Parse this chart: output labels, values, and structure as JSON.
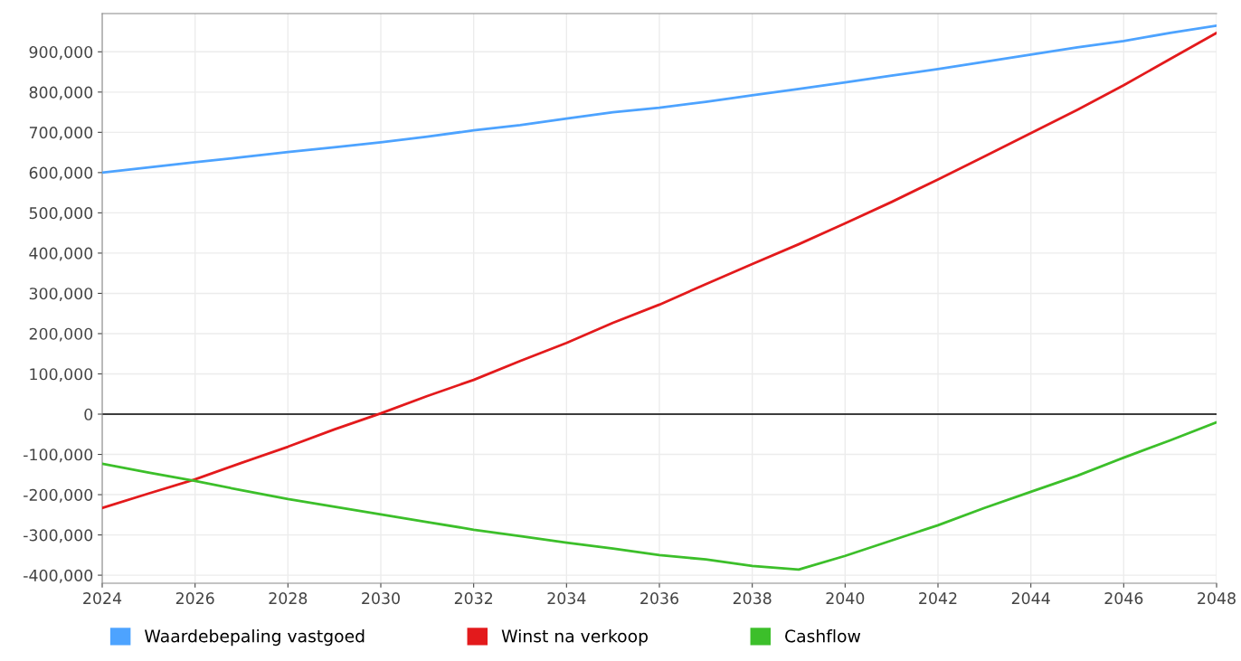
{
  "chart_data": {
    "type": "line",
    "x": [
      2024,
      2025,
      2026,
      2027,
      2028,
      2029,
      2030,
      2031,
      2032,
      2033,
      2034,
      2035,
      2036,
      2037,
      2038,
      2039,
      2040,
      2041,
      2042,
      2043,
      2044,
      2045,
      2046,
      2047,
      2048
    ],
    "series": [
      {
        "name": "Waardebepaling vastgoed",
        "color": "#4da3ff",
        "values": [
          600000,
          613000,
          626000,
          638000,
          651000,
          663000,
          675000,
          689000,
          705000,
          718000,
          734000,
          750000,
          761000,
          776000,
          792000,
          808000,
          824000,
          841000,
          857000,
          875000,
          893000,
          911000,
          927000,
          947000,
          965000
        ]
      },
      {
        "name": "Winst na verkoop",
        "color": "#e31a1c",
        "values": [
          -233000,
          -197000,
          -162000,
          -121000,
          -81000,
          -38000,
          2000,
          45000,
          85000,
          132000,
          177000,
          227000,
          272000,
          323000,
          373000,
          422000,
          474000,
          527000,
          583000,
          640000,
          698000,
          756000,
          817000,
          882000,
          947000
        ]
      },
      {
        "name": "Cashflow",
        "color": "#3cbf2a",
        "values": [
          -123000,
          -145000,
          -166000,
          -189000,
          -211000,
          -230000,
          -249000,
          -268000,
          -287000,
          -303000,
          -319000,
          -334000,
          -350000,
          -361000,
          -377000,
          -386000,
          -352000,
          -314000,
          -276000,
          -233000,
          -193000,
          -153000,
          -108000,
          -65000,
          -20000
        ]
      }
    ],
    "xlim": [
      2024,
      2048
    ],
    "xticks": [
      2024,
      2026,
      2028,
      2030,
      2032,
      2034,
      2036,
      2038,
      2040,
      2042,
      2044,
      2046,
      2048
    ],
    "ylim": [
      -420000,
      995000
    ],
    "yticks": [
      {
        "value": -400000,
        "label": "-400,000"
      },
      {
        "value": -300000,
        "label": "-300,000"
      },
      {
        "value": -200000,
        "label": "-200,000"
      },
      {
        "value": -100000,
        "label": "-100,000"
      },
      {
        "value": 0,
        "label": "0"
      },
      {
        "value": 100000,
        "label": "100,000"
      },
      {
        "value": 200000,
        "label": "200,000"
      },
      {
        "value": 300000,
        "label": "300,000"
      },
      {
        "value": 400000,
        "label": "400,000"
      },
      {
        "value": 500000,
        "label": "500,000"
      },
      {
        "value": 600000,
        "label": "600,000"
      },
      {
        "value": 700000,
        "label": "700,000"
      },
      {
        "value": 800000,
        "label": "800,000"
      },
      {
        "value": 900000,
        "label": "900,000"
      }
    ],
    "ref_lines": [
      {
        "axis": "y",
        "value": 0,
        "color": "#000000"
      }
    ],
    "grid": true,
    "legend": "bottom",
    "marker": "none",
    "line_style": "solid"
  }
}
